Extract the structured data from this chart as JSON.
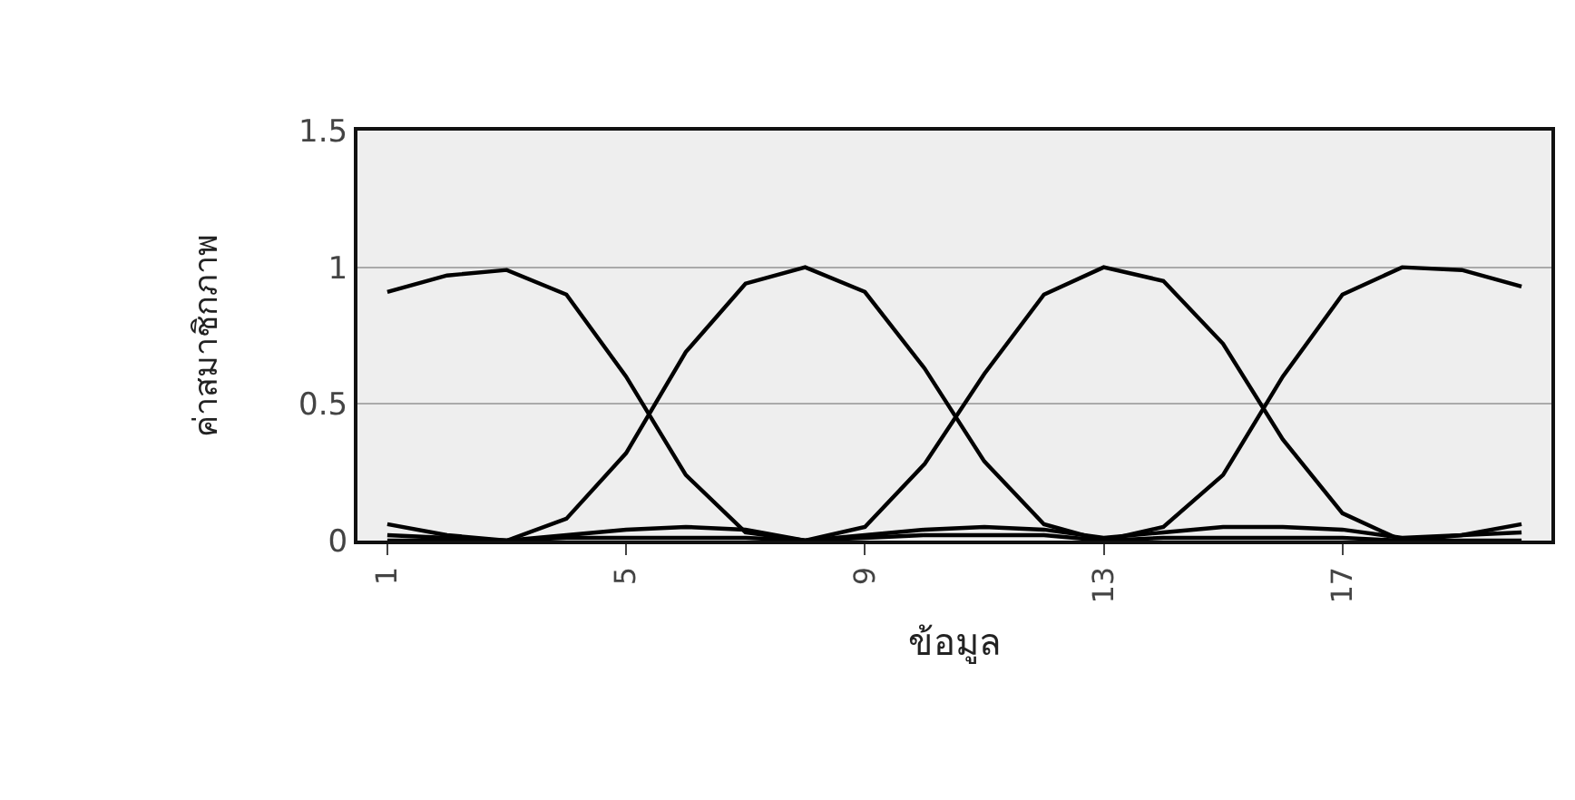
{
  "chart_data": {
    "type": "line",
    "xlabel": "ข้อมูล",
    "ylabel": "ค่าสมาชิกภาพ",
    "categories": [
      "1",
      null,
      null,
      null,
      "5",
      null,
      null,
      null,
      "9",
      null,
      null,
      null,
      "13",
      null,
      null,
      null,
      "17",
      null,
      null,
      null
    ],
    "series": [
      {
        "color": "#000000",
        "values": [
          0.91,
          0.97,
          0.99,
          0.9,
          0.6,
          0.24,
          0.03,
          0,
          0.02,
          0.04,
          0.05,
          0.04,
          0.01,
          0.03,
          0.05,
          0.05,
          0.04,
          0.01,
          0.02,
          0.06
        ]
      },
      {
        "color": "#000000",
        "values": [
          0.02,
          0.01,
          0,
          0.08,
          0.32,
          0.69,
          0.94,
          1,
          0.91,
          0.63,
          0.29,
          0.06,
          0,
          0.01,
          0.01,
          0.01,
          0.01,
          0,
          0.02,
          0.03
        ]
      },
      {
        "color": "#000000",
        "values": [
          0,
          0,
          0,
          0.01,
          0.01,
          0.01,
          0.01,
          0,
          0.05,
          0.28,
          0.61,
          0.9,
          1,
          0.95,
          0.72,
          0.37,
          0.1,
          0,
          0,
          0
        ]
      },
      {
        "color": "#000000",
        "values": [
          0.06,
          0.02,
          0,
          0.02,
          0.04,
          0.05,
          0.04,
          0,
          0.01,
          0.02,
          0.02,
          0.02,
          0,
          0.05,
          0.24,
          0.6,
          0.9,
          1,
          0.99,
          0.93
        ]
      }
    ],
    "ylim": [
      0,
      1.5
    ],
    "yticks": [
      0,
      0.5,
      1,
      1.5
    ],
    "grid": "y",
    "marker": "none",
    "line_style": "solid"
  }
}
